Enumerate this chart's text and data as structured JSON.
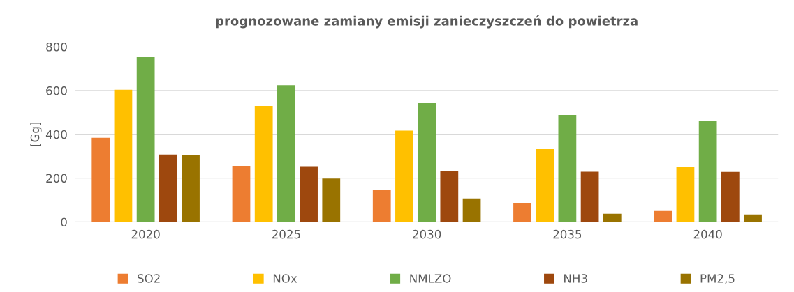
{
  "chart_data": {
    "type": "bar",
    "title": "prognozowane zamiany emisji zanieczyszczeń do powietrza",
    "ylabel": "[Gg]",
    "categories": [
      "2020",
      "2025",
      "2030",
      "2035",
      "2040"
    ],
    "series": [
      {
        "name": "SO2",
        "color": "#ed7d31",
        "values": [
          384,
          256,
          145,
          84,
          50
        ]
      },
      {
        "name": "NOx",
        "color": "#ffc000",
        "values": [
          604,
          530,
          417,
          332,
          250
        ]
      },
      {
        "name": "NMLZO",
        "color": "#70ad47",
        "values": [
          752,
          624,
          542,
          488,
          460
        ]
      },
      {
        "name": "NH3",
        "color": "#9e480e",
        "values": [
          308,
          254,
          231,
          229,
          228
        ]
      },
      {
        "name": "PM2,5",
        "color": "#997300",
        "values": [
          305,
          198,
          107,
          37,
          34
        ]
      }
    ],
    "ylim": [
      0,
      800
    ],
    "yticks": [
      0,
      200,
      400,
      600,
      800
    ],
    "grid": "y",
    "legend": "bottom"
  }
}
